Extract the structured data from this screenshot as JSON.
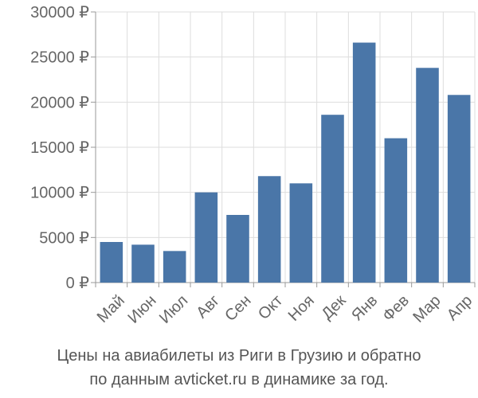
{
  "chart_data": {
    "type": "bar",
    "categories": [
      "Май",
      "Июн",
      "Июл",
      "Авг",
      "Сен",
      "Окт",
      "Ноя",
      "Дек",
      "Янв",
      "Фев",
      "Мар",
      "Апр"
    ],
    "values": [
      4500,
      4200,
      3500,
      10000,
      7500,
      11800,
      11000,
      18600,
      26600,
      16000,
      23800,
      20800
    ],
    "ylim": [
      0,
      30000
    ],
    "yticks": [
      0,
      5000,
      10000,
      15000,
      20000,
      25000,
      30000
    ],
    "ytick_labels": [
      "0 ₽",
      "5000 ₽",
      "10000 ₽",
      "15000 ₽",
      "20000 ₽",
      "25000 ₽",
      "30000 ₽"
    ],
    "grid": true,
    "bar_color": "#4a76a8",
    "grid_color": "#dddddd",
    "axis_color": "#999999",
    "text_color": "#666666"
  },
  "caption": {
    "line1": "Цены на авиабилеты из Риги в Грузию и обратно",
    "line2": "по данным avticket.ru в динамике за год."
  }
}
